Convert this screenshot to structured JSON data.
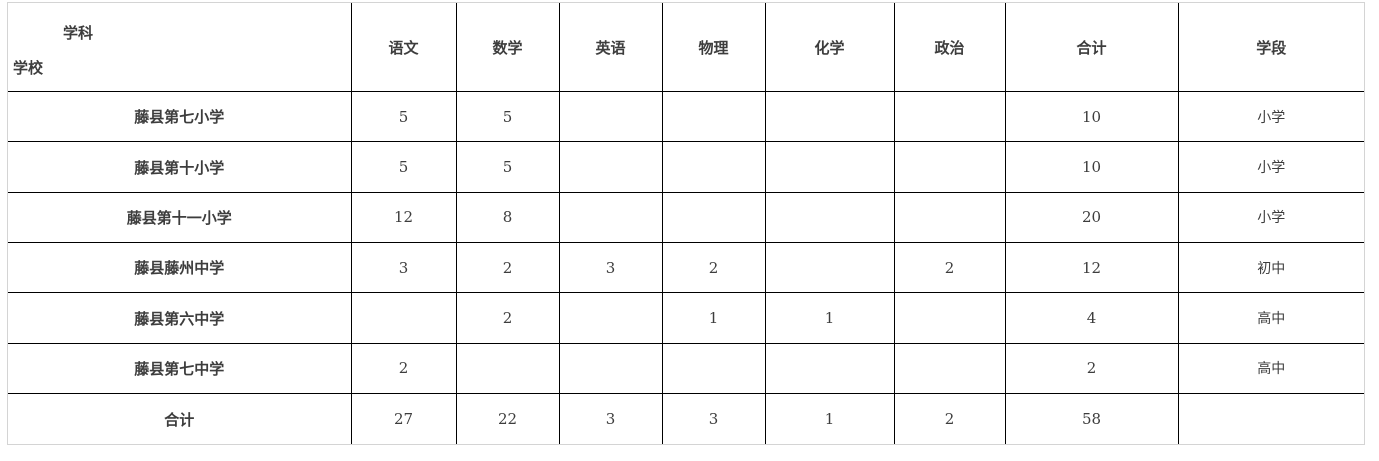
{
  "table": {
    "corner": {
      "top_label": "学科",
      "bottom_label": "学校"
    },
    "columns": {
      "chinese": "语文",
      "math": "数学",
      "english": "英语",
      "physics": "物理",
      "chemistry": "化学",
      "politics": "政治",
      "total": "合计",
      "stage": "学段"
    },
    "rows": [
      {
        "school": "藤县第七小学",
        "values": [
          "5",
          "5",
          "",
          "",
          "",
          "",
          "10",
          "小学"
        ]
      },
      {
        "school": "藤县第十小学",
        "values": [
          "5",
          "5",
          "",
          "",
          "",
          "",
          "10",
          "小学"
        ]
      },
      {
        "school": "藤县第十一小学",
        "values": [
          "12",
          "8",
          "",
          "",
          "",
          "",
          "20",
          "小学"
        ]
      },
      {
        "school": "藤县藤州中学",
        "values": [
          "3",
          "2",
          "3",
          "2",
          "",
          "2",
          "12",
          "初中"
        ]
      },
      {
        "school": "藤县第六中学",
        "values": [
          "",
          "2",
          "",
          "1",
          "1",
          "",
          "4",
          "高中"
        ]
      },
      {
        "school": "藤县第七中学",
        "values": [
          "2",
          "",
          "",
          "",
          "",
          "",
          "2",
          "高中"
        ]
      },
      {
        "school": "合计",
        "values": [
          "27",
          "22",
          "3",
          "3",
          "1",
          "2",
          "58",
          ""
        ]
      }
    ],
    "colors": {
      "inner_border": "#000000",
      "outer_border": "#d4d4d4",
      "text": "#3d3d3d",
      "background": "#ffffff"
    }
  }
}
